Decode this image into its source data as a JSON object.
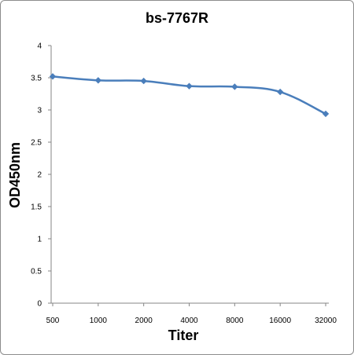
{
  "chart_data": {
    "type": "line",
    "title": "bs-7767R",
    "xlabel": "Titer",
    "ylabel": "OD450nm",
    "categories": [
      "500",
      "1000",
      "2000",
      "4000",
      "8000",
      "16000",
      "32000"
    ],
    "series": [
      {
        "values": [
          3.52,
          3.46,
          3.45,
          3.37,
          3.36,
          3.28,
          2.94
        ]
      }
    ],
    "ylim": [
      0,
      4
    ],
    "yticks": [
      "0",
      "0.5",
      "1",
      "1.5",
      "2",
      "2.5",
      "3",
      "3.5",
      "4"
    ],
    "grid": false,
    "legend": "none",
    "line_color": "#4a7ebb"
  }
}
